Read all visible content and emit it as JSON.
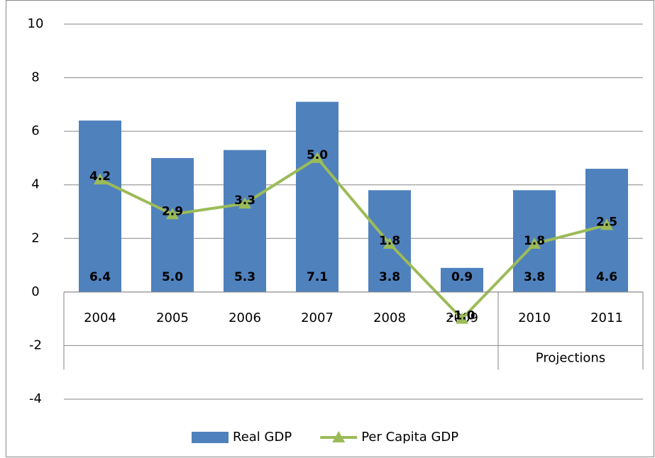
{
  "chart_data": {
    "type": "combo",
    "categories": [
      "2004",
      "2005",
      "2006",
      "2007",
      "2008",
      "2009",
      "2010",
      "2011"
    ],
    "group_label": "Projections",
    "series": [
      {
        "name": "Real GDP",
        "type": "bar",
        "color": "#4f81bd",
        "label_color": "#3d6496",
        "values": [
          6.4,
          5.0,
          5.3,
          7.1,
          3.8,
          0.9,
          3.8,
          4.6
        ],
        "value_labels": [
          "6.4",
          "5.0",
          "5.3",
          "7.1",
          "3.8",
          "0.9",
          "3.8",
          "4.6"
        ]
      },
      {
        "name": "Per Capita GDP",
        "type": "line",
        "color": "#9bbb59",
        "label_color": "#000000",
        "values": [
          4.2,
          2.9,
          3.3,
          5.0,
          1.8,
          -1.0,
          1.8,
          2.5
        ],
        "value_labels": [
          "4.2",
          "2.9",
          "3.3",
          "5.0",
          "1.8",
          "-1.0",
          "1.8",
          "2.5"
        ]
      }
    ],
    "ylim": [
      -4,
      10
    ],
    "yticks": [
      -4,
      -2,
      0,
      2,
      4,
      6,
      8,
      10
    ],
    "grid": true
  }
}
